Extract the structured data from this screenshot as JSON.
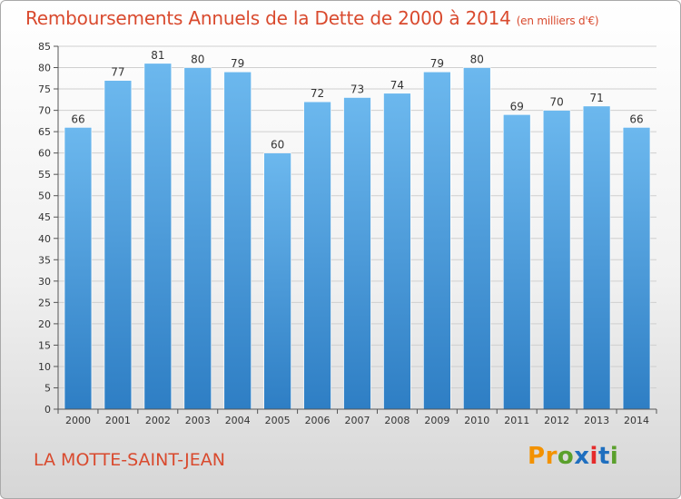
{
  "header": {
    "title": "Remboursements Annuels de la Dette de 2000 à 2014",
    "subtitle": "(en milliers d'€)"
  },
  "footer": {
    "location": "LA MOTTE-SAINT-JEAN",
    "logo_letters": [
      "P",
      "r",
      "o",
      "x",
      "i",
      "t",
      "i"
    ],
    "logo_colors": [
      "#f39200",
      "#f39200",
      "#5aa02c",
      "#1f6fbf",
      "#e52b2b",
      "#1f6fbf",
      "#5aa02c"
    ]
  },
  "colors": {
    "bar_light": "#6cb8ee",
    "bar_dark": "#2e7ec4",
    "grid": "#cfcfcf",
    "axis": "#555555"
  },
  "chart_data": {
    "type": "bar",
    "title": "Remboursements Annuels de la Dette de 2000 à 2014",
    "unit": "(en milliers d'€)",
    "categories": [
      "2000",
      "2001",
      "2002",
      "2003",
      "2004",
      "2005",
      "2006",
      "2007",
      "2008",
      "2009",
      "2010",
      "2011",
      "2012",
      "2013",
      "2014"
    ],
    "values": [
      66,
      77,
      81,
      80,
      79,
      60,
      72,
      73,
      74,
      79,
      80,
      69,
      70,
      71,
      66
    ],
    "ylim": [
      0,
      85
    ],
    "yticks": [
      0,
      5,
      10,
      15,
      20,
      25,
      30,
      35,
      40,
      45,
      50,
      55,
      60,
      65,
      70,
      75,
      80,
      85
    ],
    "grid": true,
    "xlabel": "",
    "ylabel": ""
  }
}
